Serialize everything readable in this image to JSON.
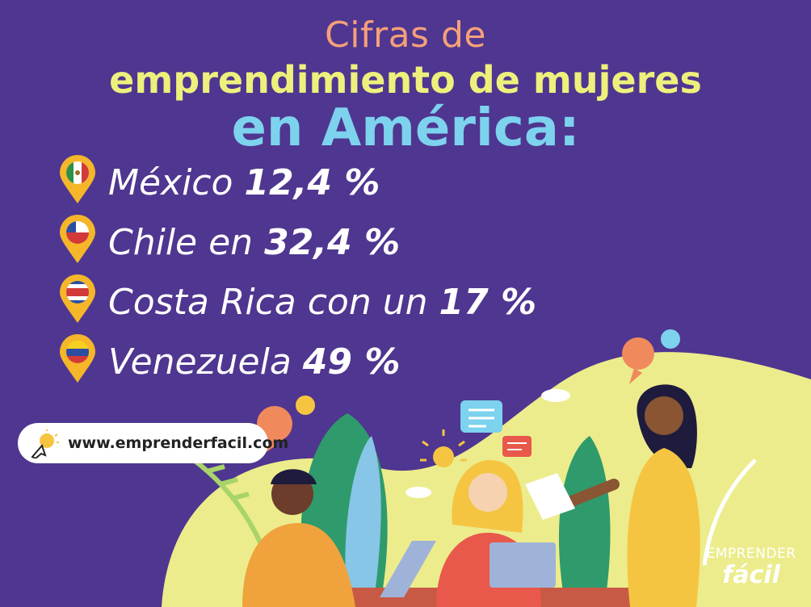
{
  "title": {
    "line1": "Cifras de",
    "line2": "emprendimiento de mujeres",
    "line3": "en América:"
  },
  "stats": [
    {
      "country": "México",
      "value": "12,4 %",
      "flag": "mexico-flag"
    },
    {
      "country": "Chile en",
      "value": "32,4 %",
      "flag": "chile-flag"
    },
    {
      "country": "Costa Rica con un",
      "value": "17 %",
      "flag": "costa-rica-flag"
    },
    {
      "country": "Venezuela",
      "value": "49 %",
      "flag": "venezuela-flag"
    }
  ],
  "website": "www.emprenderfacil.com",
  "logo": {
    "top": "EMPRENDER",
    "bottom": "fácil"
  },
  "colors": {
    "background": "#4f3690",
    "title_line1": "#f4a07a",
    "title_line2": "#eef07c",
    "title_line3": "#7dd2ee",
    "pin": "#f5b62a",
    "hill": "#ecec8c"
  }
}
